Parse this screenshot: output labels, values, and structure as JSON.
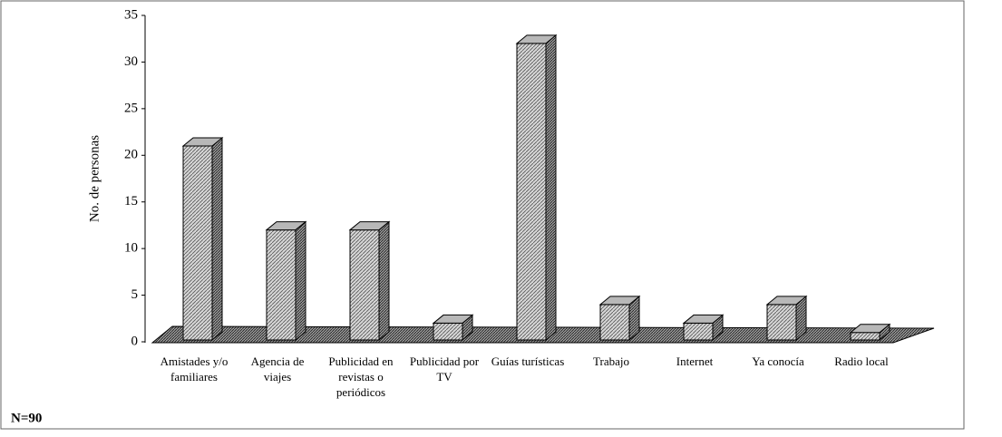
{
  "chart_data": {
    "type": "bar3d",
    "y_label": "No. de personas",
    "annotation": "N=90",
    "categories": [
      "Amistades y/o familiares",
      "Agencia de viajes",
      "Publicidad en revistas o periódicos",
      "Publicidad por TV",
      "Guías turísticas",
      "Trabajo",
      "Internet",
      "Ya conocía",
      "Radio local"
    ],
    "values": [
      21,
      12,
      12,
      2,
      32,
      4,
      2,
      4,
      1
    ],
    "color": "#b8b8b8",
    "ylim": [
      0,
      35
    ],
    "yticks": [
      0,
      5,
      10,
      15,
      20,
      25,
      30,
      35
    ]
  }
}
